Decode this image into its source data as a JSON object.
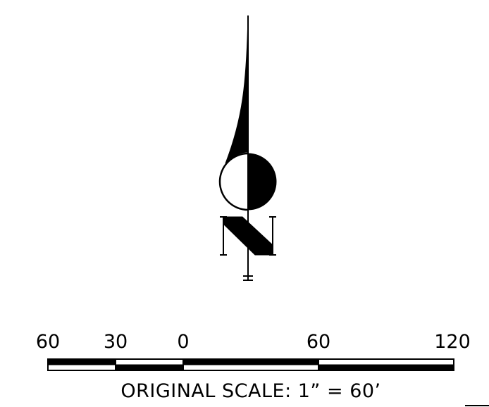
{
  "scale_bar": {
    "tick_labels": [
      "60",
      "30",
      "0",
      "60",
      "120"
    ],
    "caption": "ORIGINAL SCALE: 1” = 60’"
  },
  "colors": {
    "ink": "#000000",
    "paper": "#ffffff"
  }
}
